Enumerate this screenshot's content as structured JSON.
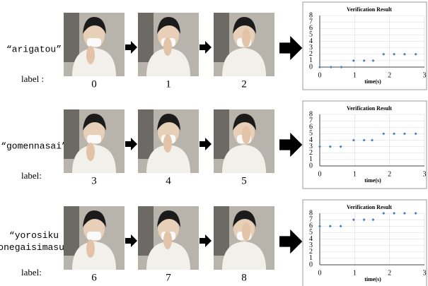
{
  "rows": [
    {
      "phrase": [
        "“arigatou”"
      ],
      "label": "label :",
      "frames": [
        "0",
        "1",
        "2"
      ]
    },
    {
      "phrase": [
        "“gomennasai”"
      ],
      "label": "label:",
      "frames": [
        "3",
        "4",
        "5"
      ]
    },
    {
      "phrase": [
        "“yorosiku",
        "onegaisimasu”"
      ],
      "label": "label:",
      "frames": [
        "6",
        "7",
        "8"
      ]
    }
  ],
  "chart_data": [
    {
      "type": "scatter",
      "title": "Verification Result",
      "x_label": "time(s)",
      "x": [
        0,
        0.32,
        0.62,
        0.97,
        1.27,
        1.53,
        1.83,
        2.13,
        2.43,
        2.75
      ],
      "values": [
        0,
        0,
        0,
        1,
        1,
        1,
        2,
        2,
        2,
        2
      ],
      "color": "#4a7ebb",
      "xlim": [
        0,
        3
      ],
      "ylim": [
        0,
        8
      ],
      "xticks": [
        0,
        1,
        2,
        3
      ],
      "yticks": [
        0,
        1,
        2,
        3,
        4,
        5,
        6,
        7,
        8
      ],
      "grid": true
    },
    {
      "type": "scatter",
      "title": "Verification Result",
      "x_label": "time(s)",
      "x": [
        0,
        0.3,
        0.6,
        0.97,
        1.27,
        1.5,
        1.83,
        2.13,
        2.43,
        2.75
      ],
      "values": [
        3,
        3,
        3,
        4,
        4,
        4,
        5,
        5,
        5,
        5
      ],
      "color": "#4a7ebb",
      "xlim": [
        0,
        3
      ],
      "ylim": [
        0,
        8
      ],
      "xticks": [
        0,
        1,
        2,
        3
      ],
      "yticks": [
        0,
        1,
        2,
        3,
        4,
        5,
        6,
        7,
        8
      ],
      "grid": true
    },
    {
      "type": "scatter",
      "title": "Verification Result",
      "x_label": "time(s)",
      "x": [
        0,
        0.3,
        0.6,
        0.97,
        1.27,
        1.53,
        1.83,
        2.13,
        2.43,
        2.75
      ],
      "values": [
        6,
        6,
        6,
        7,
        7,
        7,
        8,
        8,
        8,
        8
      ],
      "color": "#4a7ebb",
      "xlim": [
        0,
        3
      ],
      "ylim": [
        0,
        8
      ],
      "xticks": [
        0,
        1,
        2,
        3
      ],
      "yticks": [
        0,
        1,
        2,
        3,
        4,
        5,
        6,
        7,
        8
      ],
      "grid": true
    }
  ]
}
